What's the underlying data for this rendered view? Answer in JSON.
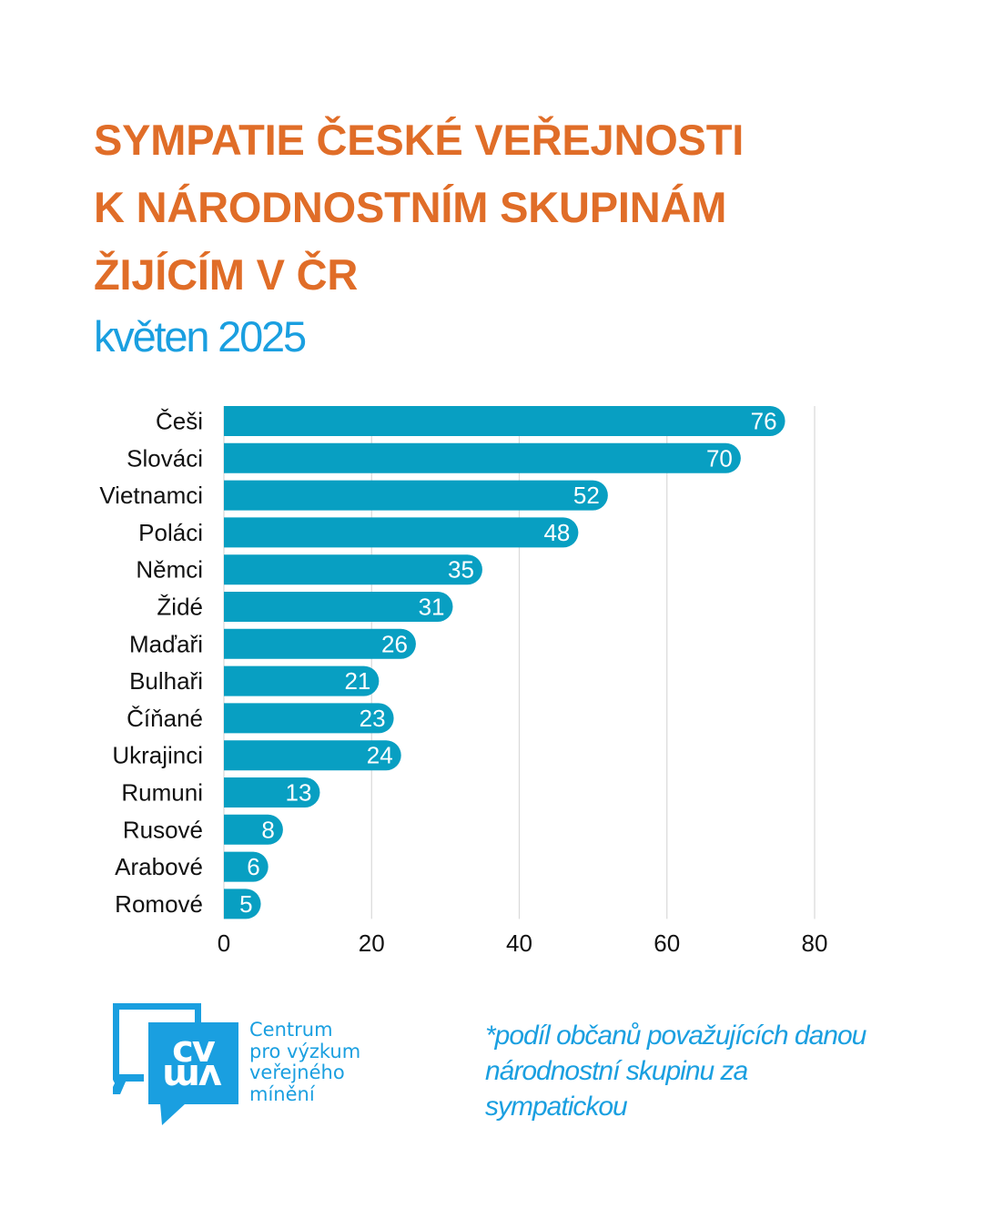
{
  "header": {
    "title_lines": [
      "SYMPATIE ČESKÉ VEŘEJNOSTI",
      "K NÁRODNOSTNÍM SKUPINÁM",
      "ŽIJÍCÍM V ČR"
    ],
    "subtitle": "květen 2025"
  },
  "colors": {
    "title": "#e06d28",
    "accent": "#1a9fe0",
    "bar": "#089fc2",
    "grid": "#d9d9d9"
  },
  "chart_data": {
    "type": "bar",
    "orientation": "horizontal",
    "title": "SYMPATIE ČESKÉ VEŘEJNOSTI K NÁRODNOSTNÍM SKUPINÁM ŽIJÍCÍM V ČR",
    "subtitle": "květen 2025",
    "categories": [
      "Češi",
      "Slováci",
      "Vietnamci",
      "Poláci",
      "Němci",
      "Židé",
      "Maďaři",
      "Bulhaři",
      "Číňané",
      "Ukrajinci",
      "Rumuni",
      "Rusové",
      "Arabové",
      "Romové"
    ],
    "values": [
      76,
      70,
      52,
      48,
      35,
      31,
      26,
      21,
      23,
      24,
      13,
      8,
      6,
      5
    ],
    "xlabel": "",
    "ylabel": "",
    "xlim": [
      0,
      80
    ],
    "xticks": [
      0,
      20,
      40,
      60,
      80
    ],
    "grid": true,
    "data_labels": true,
    "legend": "none",
    "footnote": "*podíl občanů považujících danou národnostní skupinu za sympatickou"
  },
  "footer": {
    "logo": {
      "icon": "cvvm-speech-bubbles-logo",
      "mark_top": "cv",
      "mark_bottom": "vm",
      "text_lines": [
        "Centrum",
        "pro výzkum",
        "veřejného",
        "mínění"
      ]
    },
    "footnote_lines": [
      "*podíl občanů považujících danou",
      "národnostní skupinu za",
      "sympatickou"
    ]
  }
}
